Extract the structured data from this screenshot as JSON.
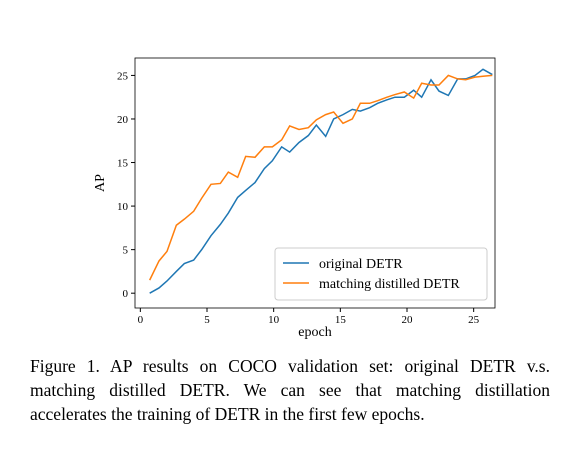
{
  "chart_data": {
    "type": "line",
    "x_label": "epoch",
    "y_label": "AP",
    "x": [
      0.7,
      1.4,
      2.0,
      2.7,
      3.3,
      4.0,
      4.6,
      5.3,
      6.0,
      6.6,
      7.3,
      7.9,
      8.6,
      9.3,
      9.9,
      10.6,
      11.2,
      11.9,
      12.6,
      13.2,
      13.9,
      14.5,
      15.2,
      15.9,
      16.5,
      17.2,
      17.8,
      18.5,
      19.1,
      19.8,
      20.5,
      21.1,
      21.8,
      22.4,
      23.1,
      23.8,
      24.4,
      25.1,
      25.7,
      26.4
    ],
    "series": [
      {
        "name": "original DETR",
        "color": "#1f77b4",
        "values": [
          0,
          0.6,
          1.4,
          2.5,
          3.4,
          3.8,
          5.0,
          6.6,
          7.9,
          9.2,
          11.0,
          11.8,
          12.7,
          14.3,
          15.2,
          16.8,
          16.2,
          17.3,
          18.1,
          19.3,
          18.0,
          20.0,
          20.5,
          21.1,
          20.9,
          21.3,
          21.8,
          22.2,
          22.5,
          22.5,
          23.3,
          22.5,
          24.5,
          23.2,
          22.7,
          24.6,
          24.6,
          25.0,
          25.7,
          25.1
        ]
      },
      {
        "name": "matching distilled DETR",
        "color": "#ff7f0e",
        "values": [
          1.5,
          3.7,
          4.8,
          7.8,
          8.5,
          9.4,
          10.9,
          12.5,
          12.6,
          13.9,
          13.3,
          15.7,
          15.6,
          16.8,
          16.8,
          17.6,
          19.2,
          18.8,
          19.0,
          19.9,
          20.5,
          20.8,
          19.5,
          20.0,
          21.8,
          21.8,
          22.1,
          22.5,
          22.8,
          23.1,
          22.4,
          24.1,
          23.9,
          23.9,
          25.0,
          24.6,
          24.5,
          24.8,
          24.9,
          25.0
        ]
      }
    ],
    "xlim": [
      -0.4,
      26.6
    ],
    "xticks": [
      0,
      5,
      10,
      15,
      20,
      25
    ],
    "ylim": [
      -1.7,
      27
    ],
    "yticks": [
      0,
      5,
      10,
      15,
      20,
      25
    ],
    "legend": "lower right"
  },
  "caption": "Figure 1. AP results on COCO validation set: original DETR v.s. matching distilled DETR. We can see that matching distillation accelerates the training of DETR in the first few epochs."
}
